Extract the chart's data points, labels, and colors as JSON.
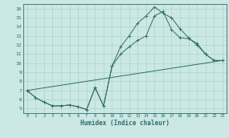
{
  "xlabel": "Humidex (Indice chaleur)",
  "bg_color": "#cce8e4",
  "grid_color": "#aad4ce",
  "line_color": "#2e6e6a",
  "xlim": [
    -0.5,
    23.5
  ],
  "ylim": [
    4.5,
    16.5
  ],
  "xticks": [
    0,
    1,
    2,
    3,
    4,
    5,
    6,
    7,
    8,
    9,
    10,
    11,
    12,
    13,
    14,
    15,
    16,
    17,
    18,
    19,
    20,
    21,
    22,
    23
  ],
  "yticks": [
    5,
    6,
    7,
    8,
    9,
    10,
    11,
    12,
    13,
    14,
    15,
    16
  ],
  "line1_x": [
    0,
    1,
    2,
    3,
    4,
    5,
    6,
    7,
    8,
    9,
    10,
    11,
    12,
    13,
    14,
    15,
    16,
    17,
    18,
    19,
    20,
    21,
    22,
    23
  ],
  "line1_y": [
    7.0,
    6.2,
    5.7,
    5.3,
    5.3,
    5.4,
    5.2,
    4.9,
    7.3,
    5.3,
    9.7,
    11.8,
    13.0,
    14.4,
    15.2,
    16.2,
    15.5,
    15.0,
    13.8,
    12.8,
    12.0,
    11.0,
    10.3,
    10.3
  ],
  "line2_x": [
    0,
    1,
    2,
    3,
    4,
    5,
    6,
    7,
    8,
    9,
    10,
    11,
    12,
    13,
    14,
    15,
    16,
    17,
    18,
    19,
    20,
    21,
    22,
    23
  ],
  "line2_y": [
    7.0,
    6.2,
    5.7,
    5.3,
    5.3,
    5.4,
    5.2,
    4.9,
    7.3,
    5.3,
    9.7,
    11.0,
    11.8,
    12.5,
    13.0,
    15.2,
    15.7,
    13.7,
    12.8,
    12.7,
    12.2,
    11.0,
    10.3,
    10.3
  ],
  "line3_x": [
    0,
    23
  ],
  "line3_y": [
    7.0,
    10.3
  ]
}
